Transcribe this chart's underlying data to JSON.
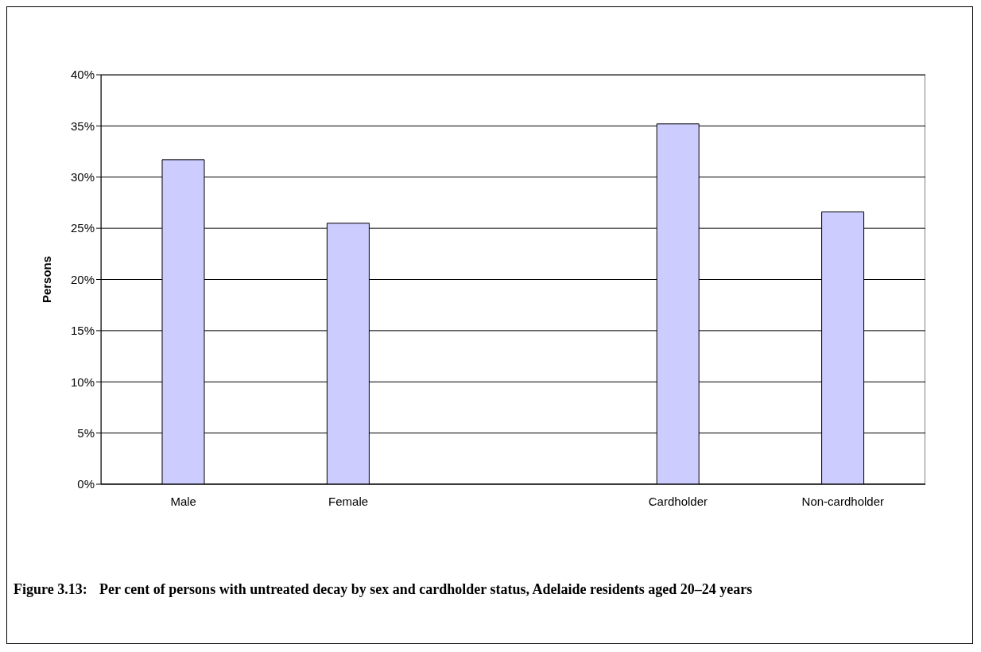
{
  "chart_data": {
    "type": "bar",
    "title": "Figure 3.13:\tPer cent of persons with untreated decay by sex and cardholder status, Adelaide residents aged 20–24 years",
    "ylabel": "Persons",
    "categories": [
      "Male",
      "Female",
      null,
      "Cardholder",
      "Non-cardholder"
    ],
    "values": [
      31.7,
      25.5,
      null,
      35.2,
      26.6
    ],
    "color": "#ccccff",
    "ylim": [
      0,
      40
    ],
    "yticks": [
      {
        "value": 0,
        "label": "0%"
      },
      {
        "value": 5,
        "label": "5%"
      },
      {
        "value": 10,
        "label": "10%"
      },
      {
        "value": 15,
        "label": "15%"
      },
      {
        "value": 20,
        "label": "20%"
      },
      {
        "value": 25,
        "label": "25%"
      },
      {
        "value": 30,
        "label": "30%"
      },
      {
        "value": 35,
        "label": "35%"
      },
      {
        "value": 40,
        "label": "40%"
      }
    ],
    "grid": "y",
    "legend": false
  }
}
